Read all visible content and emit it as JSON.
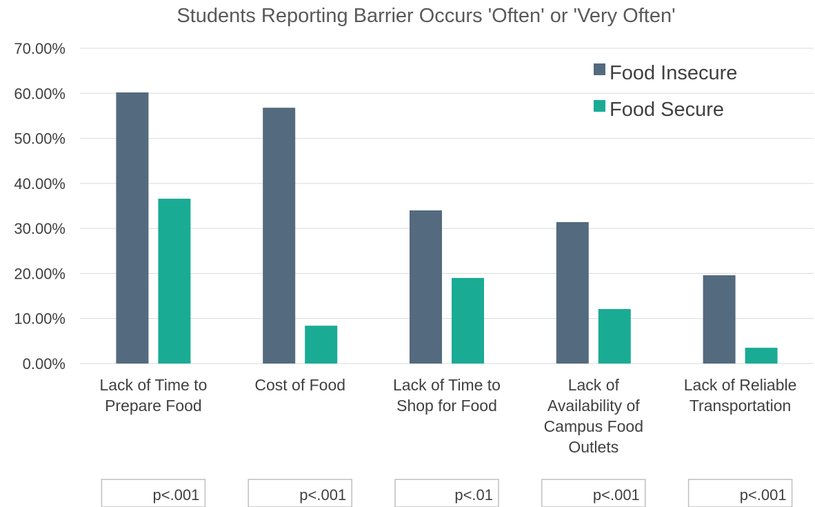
{
  "chart_data": {
    "type": "bar",
    "title": "Students Reporting Barrier Occurs 'Often' or 'Very Often'",
    "categories": [
      [
        "Lack of Time to",
        "Prepare Food"
      ],
      [
        "Cost of Food"
      ],
      [
        "Lack of Time to",
        "Shop for Food"
      ],
      [
        "Lack of",
        "Availability of",
        "Campus Food",
        "Outlets"
      ],
      [
        "Lack of Reliable",
        "Transportation"
      ]
    ],
    "series": [
      {
        "name": "Food Insecure",
        "color": "#546a7e",
        "values": [
          60.2,
          56.8,
          34.0,
          31.4,
          19.6
        ]
      },
      {
        "name": "Food Secure",
        "color": "#1aab95",
        "values": [
          36.6,
          8.4,
          19.0,
          12.1,
          3.5
        ]
      }
    ],
    "ylim": [
      0,
      70
    ],
    "yticks": [
      "0.00%",
      "10.00%",
      "20.00%",
      "30.00%",
      "40.00%",
      "50.00%",
      "60.00%",
      "70.00%"
    ],
    "grid": true,
    "legend_position": "top-right",
    "significance": [
      "p<.001",
      "p<.001",
      "p<.01",
      "p<.001",
      "p<.001"
    ]
  }
}
